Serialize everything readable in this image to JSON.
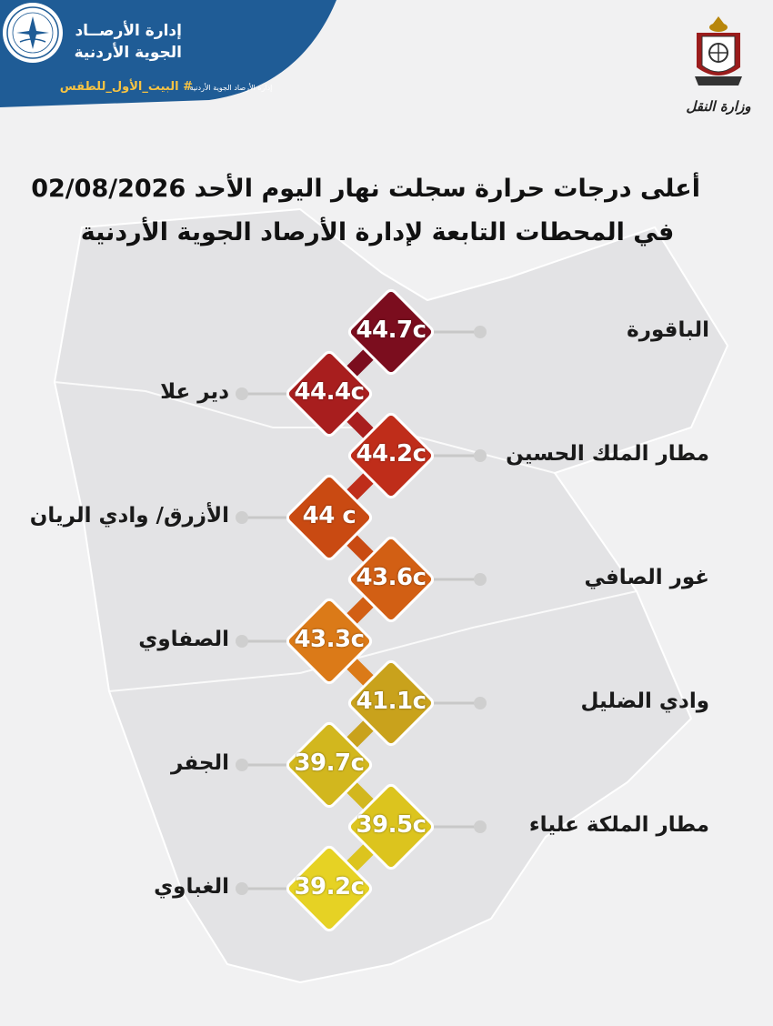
{
  "header": {
    "agency_line1": "إدارة الأرصــاد",
    "agency_line2": "الجوية الأردنية",
    "hashtag": "# البيت_الأول_للطقس",
    "logo_caption": "إدارة الأرصاد الجوية الأردنية"
  },
  "ministry": {
    "caption": "وزارة النقل"
  },
  "title": {
    "line1": "أعلى درجات حرارة سجلت نهار اليوم الأحد 02/08/2026",
    "line2": "في المحطات التابعة لإدارة الأرصاد الجوية الأردنية"
  },
  "colors": {
    "header_blue": "#1f5c96",
    "accent_yellow": "#f6c343"
  },
  "chart_data": {
    "type": "table",
    "unit": "c",
    "stations": [
      {
        "name": "الباقورة",
        "temp": "44.7",
        "color": "#7b0d1e"
      },
      {
        "name": "دير علا",
        "temp": "44.4",
        "color": "#a81e1e"
      },
      {
        "name": "مطار الملك الحسين",
        "temp": "44.2",
        "color": "#bf2d1a"
      },
      {
        "name": "الأزرق/ وادي الريان",
        "temp": "44 ",
        "color": "#c94a12"
      },
      {
        "name": "غور الصافي",
        "temp": "43.6",
        "color": "#d25f14"
      },
      {
        "name": "الصفاوي",
        "temp": "43.3",
        "color": "#db7a18"
      },
      {
        "name": "وادي الضليل",
        "temp": "41.1",
        "color": "#c9a21c"
      },
      {
        "name": "الجفر",
        "temp": "39.7",
        "color": "#d2b71e"
      },
      {
        "name": "مطار الملكة علياء",
        "temp": "39.5",
        "color": "#dcc41e"
      },
      {
        "name": "الغباوي",
        "temp": "39.2",
        "color": "#e6d224"
      }
    ]
  }
}
